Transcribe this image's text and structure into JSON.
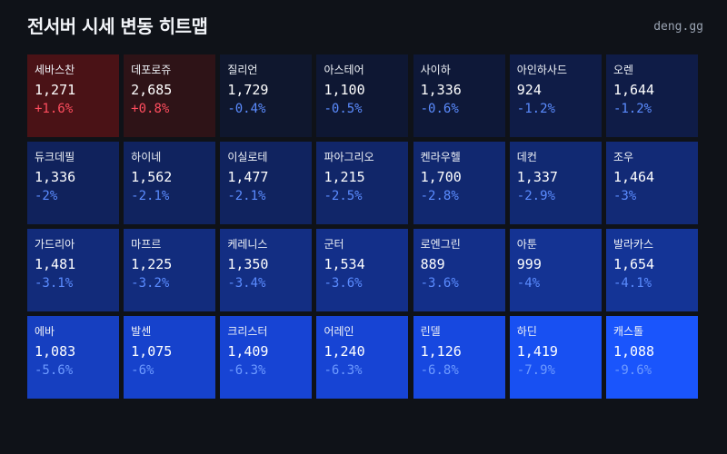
{
  "header": {
    "title": "전서버 시세 변동 히트맵",
    "brand": "deng.gg"
  },
  "heatmap": {
    "cells": [
      {
        "name": "세바스찬",
        "price": "1,271",
        "change": "+1.6%",
        "bg": "#4a1216",
        "fg": "#ff4d5e"
      },
      {
        "name": "데포로쥬",
        "price": "2,685",
        "change": "+0.8%",
        "bg": "#2e1317",
        "fg": "#ff4d5e"
      },
      {
        "name": "질리언",
        "price": "1,729",
        "change": "-0.4%",
        "bg": "#0f172e",
        "fg": "#5b8cff"
      },
      {
        "name": "아스테어",
        "price": "1,100",
        "change": "-0.5%",
        "bg": "#0e1733",
        "fg": "#5b8cff"
      },
      {
        "name": "사이하",
        "price": "1,336",
        "change": "-0.6%",
        "bg": "#0e1838",
        "fg": "#5b8cff"
      },
      {
        "name": "아인하사드",
        "price": "924",
        "change": "-1.2%",
        "bg": "#0f1c47",
        "fg": "#5b8cff"
      },
      {
        "name": "오렌",
        "price": "1,644",
        "change": "-1.2%",
        "bg": "#0f1c47",
        "fg": "#5b8cff"
      },
      {
        "name": "듀크데필",
        "price": "1,336",
        "change": "-2%",
        "bg": "#10225c",
        "fg": "#5b8cff"
      },
      {
        "name": "하이네",
        "price": "1,562",
        "change": "-2.1%",
        "bg": "#10235f",
        "fg": "#5b8cff"
      },
      {
        "name": "이실로테",
        "price": "1,477",
        "change": "-2.1%",
        "bg": "#10235f",
        "fg": "#5b8cff"
      },
      {
        "name": "파아그리오",
        "price": "1,215",
        "change": "-2.5%",
        "bg": "#112669",
        "fg": "#5b8cff"
      },
      {
        "name": "켄라우헬",
        "price": "1,700",
        "change": "-2.8%",
        "bg": "#112870",
        "fg": "#5b8cff"
      },
      {
        "name": "데컨",
        "price": "1,337",
        "change": "-2.9%",
        "bg": "#112972",
        "fg": "#5b8cff"
      },
      {
        "name": "조우",
        "price": "1,464",
        "change": "-3%",
        "bg": "#122a76",
        "fg": "#5b8cff"
      },
      {
        "name": "가드리아",
        "price": "1,481",
        "change": "-3.1%",
        "bg": "#122b7a",
        "fg": "#5b8cff"
      },
      {
        "name": "마프르",
        "price": "1,225",
        "change": "-3.2%",
        "bg": "#122c7d",
        "fg": "#5b8cff"
      },
      {
        "name": "케레니스",
        "price": "1,350",
        "change": "-3.4%",
        "bg": "#132e83",
        "fg": "#5b8cff"
      },
      {
        "name": "군터",
        "price": "1,534",
        "change": "-3.6%",
        "bg": "#132f89",
        "fg": "#5b8cff"
      },
      {
        "name": "로엔그린",
        "price": "889",
        "change": "-3.6%",
        "bg": "#132f89",
        "fg": "#5b8cff"
      },
      {
        "name": "아툰",
        "price": "999",
        "change": "-4%",
        "bg": "#143393",
        "fg": "#5b8cff"
      },
      {
        "name": "발라카스",
        "price": "1,654",
        "change": "-4.1%",
        "bg": "#143496",
        "fg": "#5b8cff"
      },
      {
        "name": "에바",
        "price": "1,083",
        "change": "-5.6%",
        "bg": "#163fc0",
        "fg": "#6d9aff"
      },
      {
        "name": "발센",
        "price": "1,075",
        "change": "-6%",
        "bg": "#1642cc",
        "fg": "#6d9aff"
      },
      {
        "name": "크리스터",
        "price": "1,409",
        "change": "-6.3%",
        "bg": "#1744d4",
        "fg": "#6d9aff"
      },
      {
        "name": "어레인",
        "price": "1,240",
        "change": "-6.3%",
        "bg": "#1744d4",
        "fg": "#6d9aff"
      },
      {
        "name": "린델",
        "price": "1,126",
        "change": "-6.8%",
        "bg": "#1748e0",
        "fg": "#6d9aff"
      },
      {
        "name": "하딘",
        "price": "1,419",
        "change": "-7.9%",
        "bg": "#1850f2",
        "fg": "#6d9aff"
      },
      {
        "name": "캐스톨",
        "price": "1,088",
        "change": "-9.6%",
        "bg": "#1a55fc",
        "fg": "#6d9aff"
      }
    ]
  }
}
